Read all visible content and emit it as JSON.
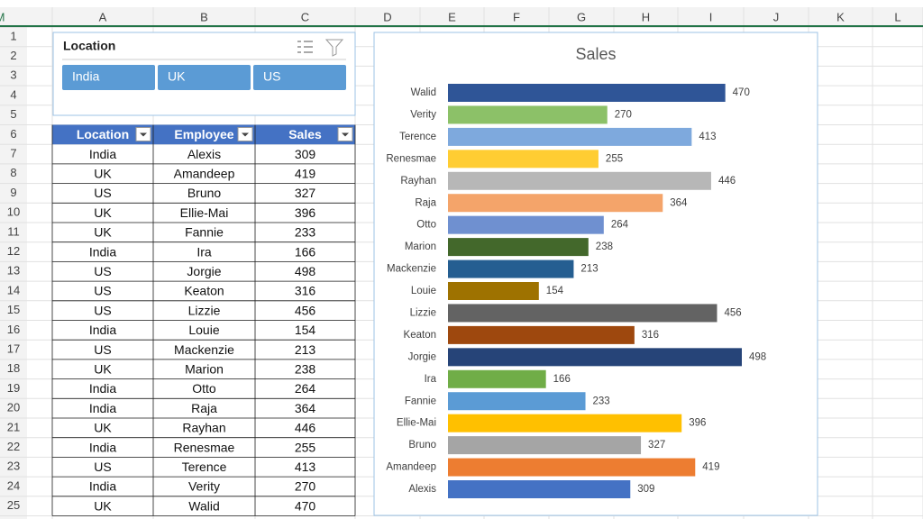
{
  "columns": [
    "A",
    "B",
    "C",
    "D",
    "E",
    "F",
    "G",
    "H",
    "I",
    "J",
    "K",
    "L",
    "M"
  ],
  "row_numbers": [
    1,
    2,
    3,
    4,
    5,
    6,
    7,
    8,
    9,
    10,
    11,
    12,
    13,
    14,
    15,
    16,
    17,
    18,
    19,
    20,
    21,
    22,
    23,
    24,
    25
  ],
  "slicer": {
    "title": "Location",
    "buttons": [
      "India",
      "UK",
      "US"
    ]
  },
  "table": {
    "headers": [
      "Location",
      "Employee",
      "Sales"
    ],
    "rows": [
      [
        "India",
        "Alexis",
        309
      ],
      [
        "UK",
        "Amandeep",
        419
      ],
      [
        "US",
        "Bruno",
        327
      ],
      [
        "UK",
        "Ellie-Mai",
        396
      ],
      [
        "UK",
        "Fannie",
        233
      ],
      [
        "India",
        "Ira",
        166
      ],
      [
        "US",
        "Jorgie",
        498
      ],
      [
        "US",
        "Keaton",
        316
      ],
      [
        "US",
        "Lizzie",
        456
      ],
      [
        "India",
        "Louie",
        154
      ],
      [
        "US",
        "Mackenzie",
        213
      ],
      [
        "UK",
        "Marion",
        238
      ],
      [
        "India",
        "Otto",
        264
      ],
      [
        "India",
        "Raja",
        364
      ],
      [
        "UK",
        "Rayhan",
        446
      ],
      [
        "India",
        "Renesmae",
        255
      ],
      [
        "US",
        "Terence",
        413
      ],
      [
        "India",
        "Verity",
        270
      ],
      [
        "UK",
        "Walid",
        470
      ]
    ]
  },
  "chart_data": {
    "type": "bar",
    "orientation": "horizontal",
    "title": "Sales",
    "categories": [
      "Alexis",
      "Amandeep",
      "Bruno",
      "Ellie-Mai",
      "Fannie",
      "Ira",
      "Jorgie",
      "Keaton",
      "Lizzie",
      "Louie",
      "Mackenzie",
      "Marion",
      "Otto",
      "Raja",
      "Rayhan",
      "Renesmae",
      "Terence",
      "Verity",
      "Walid"
    ],
    "values": [
      309,
      419,
      327,
      396,
      233,
      166,
      498,
      316,
      456,
      154,
      213,
      238,
      264,
      364,
      446,
      255,
      413,
      270,
      470
    ],
    "colors": [
      "#4472c4",
      "#ed7d31",
      "#a5a5a5",
      "#ffc000",
      "#5b9bd5",
      "#70ad47",
      "#264478",
      "#9e480e",
      "#636363",
      "#9e7200",
      "#255e91",
      "#43682b",
      "#6f90d0",
      "#f4a46a",
      "#b7b7b7",
      "#ffcd33",
      "#7ea9dd",
      "#8cc168",
      "#2f5597"
    ]
  }
}
